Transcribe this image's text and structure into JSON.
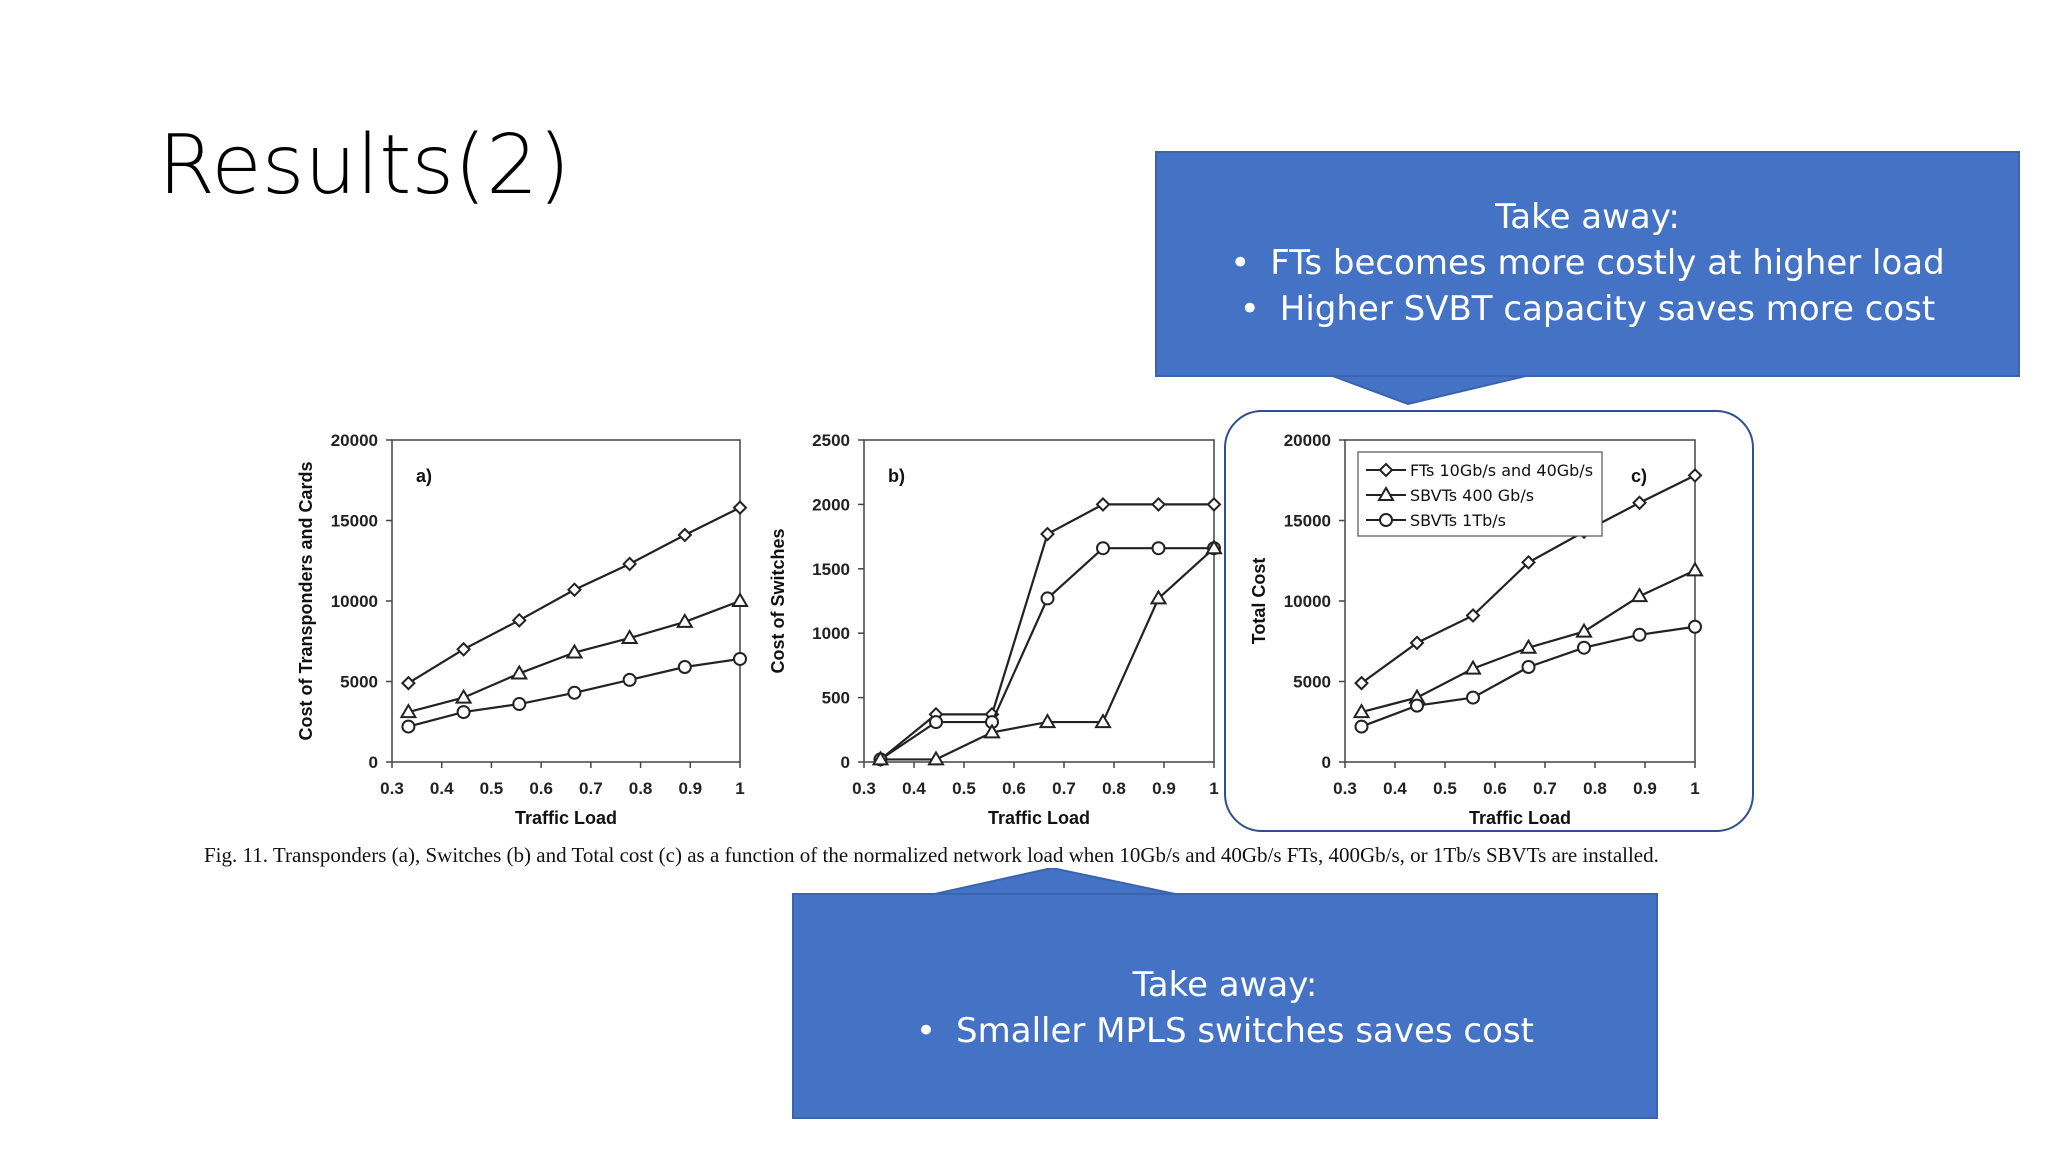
{
  "slide": {
    "title": "Results(2)"
  },
  "callouts": {
    "top": {
      "heading": "Take away:",
      "bullets": [
        "FTs becomes more costly at higher load",
        "Higher SVBT capacity saves more cost"
      ]
    },
    "bottom": {
      "heading": "Take away:",
      "bullets": [
        "Smaller MPLS switches saves cost"
      ]
    }
  },
  "figure": {
    "caption": "Fig. 11. Transponders (a), Switches (b) and Total cost (c) as a function of the normalized network load when 10Gb/s and 40Gb/s FTs, 400Gb/s, or 1Tb/s SBVTs are installed."
  },
  "colors": {
    "callout_fill": "#4472C4",
    "callout_text": "#FFFFFF",
    "plot_line": "#222222"
  },
  "chart_data": [
    {
      "type": "line",
      "panel_label": "a)",
      "xlabel": "Traffic Load",
      "ylabel": "Cost of Transponders and Cards",
      "xlim": [
        0.3,
        1
      ],
      "ylim": [
        0,
        20000
      ],
      "xticks": [
        "0.3",
        "0.4",
        "0.5",
        "0.6",
        "0.7",
        "0.8",
        "0.9",
        "1"
      ],
      "yticks": [
        "0",
        "5000",
        "10000",
        "15000",
        "20000"
      ],
      "x": [
        0.333,
        0.444,
        0.556,
        0.667,
        0.778,
        0.889,
        1.0
      ],
      "series": [
        {
          "marker": "diamond",
          "values": [
            4900,
            7000,
            8800,
            10700,
            12300,
            14100,
            15800
          ]
        },
        {
          "marker": "triangle",
          "values": [
            3100,
            4000,
            5500,
            6800,
            7700,
            8700,
            10000
          ]
        },
        {
          "marker": "circle",
          "values": [
            2200,
            3100,
            3600,
            4300,
            5100,
            5900,
            6400
          ]
        }
      ]
    },
    {
      "type": "line",
      "panel_label": "b)",
      "xlabel": "Traffic Load",
      "ylabel": "Cost of Switches",
      "xlim": [
        0.3,
        1
      ],
      "ylim": [
        0,
        2500
      ],
      "xticks": [
        "0.3",
        "0.4",
        "0.5",
        "0.6",
        "0.7",
        "0.8",
        "0.9",
        "1"
      ],
      "yticks": [
        "0",
        "500",
        "1000",
        "1500",
        "2000",
        "2500"
      ],
      "x": [
        0.333,
        0.444,
        0.556,
        0.667,
        0.778,
        0.889,
        1.0
      ],
      "series": [
        {
          "marker": "diamond",
          "values": [
            20,
            370,
            370,
            1770,
            2000,
            2000,
            2000
          ]
        },
        {
          "marker": "circle",
          "values": [
            20,
            310,
            310,
            1270,
            1660,
            1660,
            1660
          ]
        },
        {
          "marker": "triangle",
          "values": [
            20,
            20,
            230,
            310,
            310,
            1270,
            1660
          ]
        }
      ]
    },
    {
      "type": "line",
      "panel_label": "c)",
      "xlabel": "Traffic Load",
      "ylabel": "Total Cost",
      "xlim": [
        0.3,
        1
      ],
      "ylim": [
        0,
        20000
      ],
      "xticks": [
        "0.3",
        "0.4",
        "0.5",
        "0.6",
        "0.7",
        "0.8",
        "0.9",
        "1"
      ],
      "yticks": [
        "0",
        "5000",
        "10000",
        "15000",
        "20000"
      ],
      "x": [
        0.333,
        0.444,
        0.556,
        0.667,
        0.778,
        0.889,
        1.0
      ],
      "legend": "top-left",
      "series": [
        {
          "name": "FTs 10Gb/s and 40Gb/s",
          "marker": "diamond",
          "values": [
            4900,
            7400,
            9100,
            12400,
            14300,
            16100,
            17800
          ]
        },
        {
          "name": "SBVTs 400 Gb/s",
          "marker": "triangle",
          "values": [
            3100,
            4000,
            5800,
            7100,
            8100,
            10300,
            11900
          ]
        },
        {
          "name": "SBVTs 1Tb/s",
          "marker": "circle",
          "values": [
            2200,
            3500,
            4000,
            5900,
            7100,
            7900,
            8400
          ]
        }
      ]
    }
  ]
}
